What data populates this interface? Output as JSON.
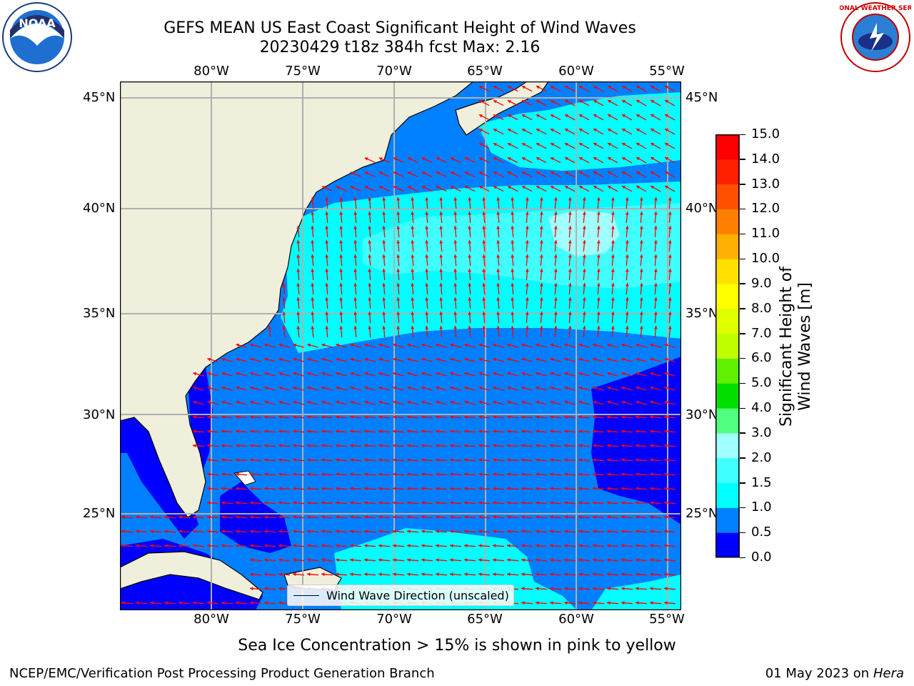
{
  "header": {
    "title_line1": "GEFS MEAN US East Coast Significant Height of Wind Waves",
    "title_line2": "20230429 t18z 384h fcst   Max: 2.16"
  },
  "logos": {
    "left": "NOAA",
    "right": "NATIONAL WEATHER SERVICE"
  },
  "map": {
    "lon_labels": [
      "80°W",
      "75°W",
      "70°W",
      "65°W",
      "60°W",
      "55°W"
    ],
    "lat_labels": [
      "45°N",
      "40°N",
      "35°N",
      "30°N",
      "25°N"
    ],
    "legend_label": "Wind Wave Direction (unscaled)",
    "arrow_color": "#ff0000",
    "land_color": "#efefdc"
  },
  "colorbar": {
    "title": "Significant Height of Wind Waves [m]",
    "tick_labels": [
      "0.0",
      "0.5",
      "1.0",
      "1.5",
      "2.0",
      "3.0",
      "4.0",
      "5.0",
      "6.0",
      "7.0",
      "8.0",
      "9.0",
      "10.0",
      "11.0",
      "12.0",
      "13.0",
      "14.0",
      "15.0"
    ],
    "colors": [
      "#0000ff",
      "#0080ff",
      "#00ffff",
      "#40ffff",
      "#a0ffff",
      "#50ff80",
      "#00e000",
      "#60f000",
      "#c0ff00",
      "#e0ff00",
      "#ffff00",
      "#ffe000",
      "#ffb000",
      "#ff8000",
      "#ff5000",
      "#ff2000",
      "#ff0000"
    ]
  },
  "subtitle": "Sea Ice Concentration > 15% is shown in pink to yellow",
  "footer": {
    "left": "NCEP/EMC/Verification Post Processing Product Generation Branch",
    "date": "01 May 2023 on",
    "host": "Hera"
  }
}
